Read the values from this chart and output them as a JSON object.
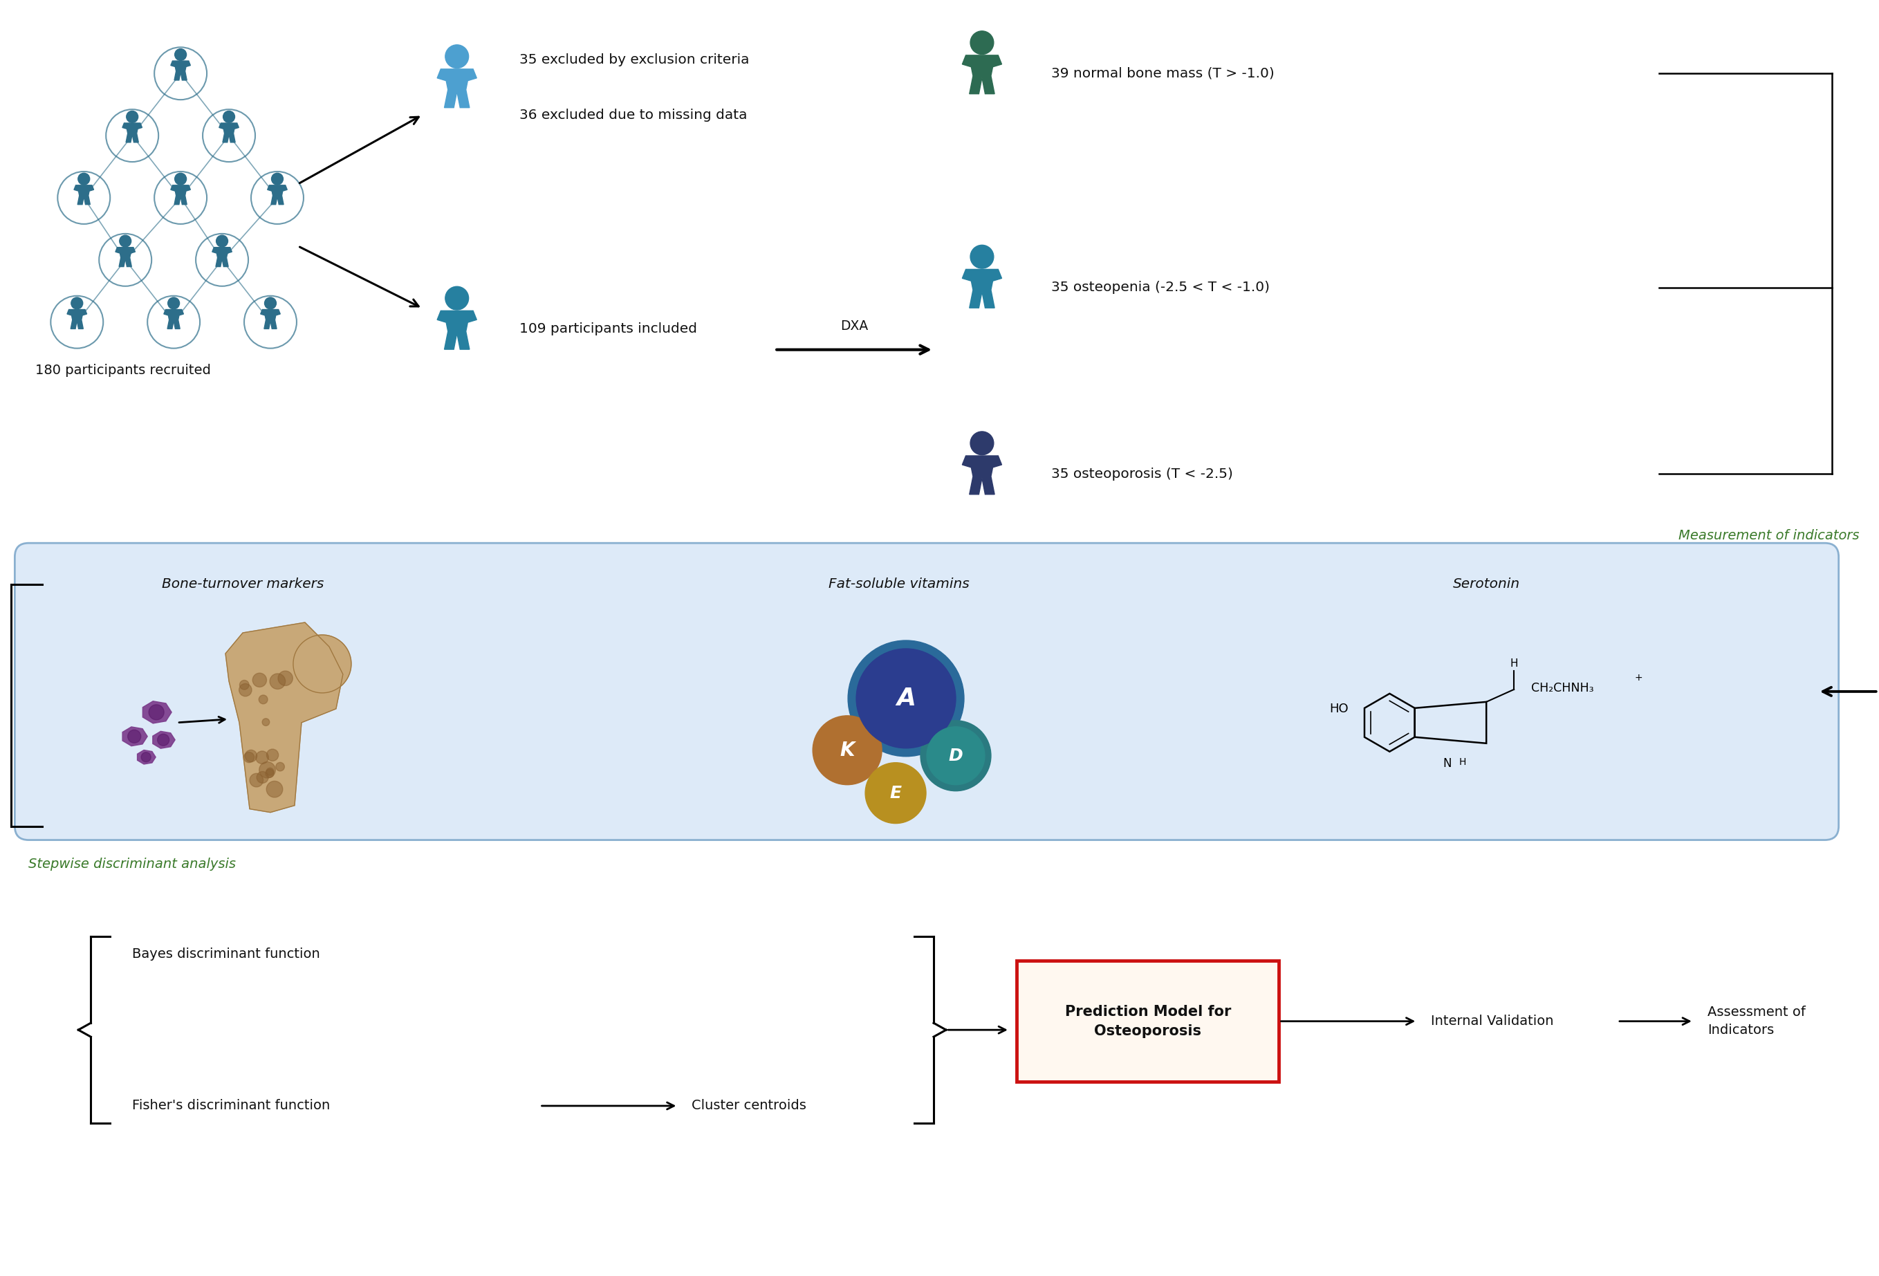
{
  "fig_width": 27.17,
  "fig_height": 18.45,
  "bg_color": "#ffffff",
  "group_colors": [
    "#2d6b52",
    "#2680a0",
    "#2d3a6b"
  ],
  "section_label_color": "#3a7a2a",
  "box_bg": "#ddeaf8",
  "box_border": "#8ab0d0",
  "red_box": "#cc1111",
  "text_color": "#111111",
  "person_cluster_color": "#2d6e8a",
  "person_excluded_color": "#4da0d0",
  "person_included_color": "#2680a0",
  "person_normal_color": "#2d6b52",
  "person_osteopenia_color": "#2680a0",
  "person_osteoporosis_color": "#2d3a6b",
  "vitamin_A_fill": "#2b3d8f",
  "vitamin_K_fill": "#b07030",
  "vitamin_E_fill": "#b89020",
  "vitamin_D_fill": "#2a8a8a",
  "bone_color": "#c8a878",
  "bone_dark": "#a07840",
  "purple_blob": "#7a3a8a",
  "texts": {
    "excluded1": "35 excluded by exclusion criteria",
    "excluded2": "36 excluded due to missing data",
    "included": "109 participants included",
    "dxa": "DXA",
    "recruited": "180 participants recruited",
    "normal": "39 normal bone mass (T > -1.0)",
    "osteopenia": "35 osteopenia (-2.5 < T < -1.0)",
    "osteoporosis": "35 osteoporosis (T < -2.5)",
    "measurement": "Measurement of indicators",
    "bone_markers": "Bone-turnover markers",
    "fat_vitamins": "Fat-soluble vitamins",
    "serotonin": "Serotonin",
    "stepwise": "Stepwise discriminant analysis",
    "bayes": "Bayes discriminant function",
    "fisher": "Fisher's discriminant function",
    "cluster": "Cluster centroids",
    "prediction": "Prediction Model for\nOsteoporosis",
    "internal": "Internal Validation",
    "assessment": "Assessment of\nIndicators"
  }
}
